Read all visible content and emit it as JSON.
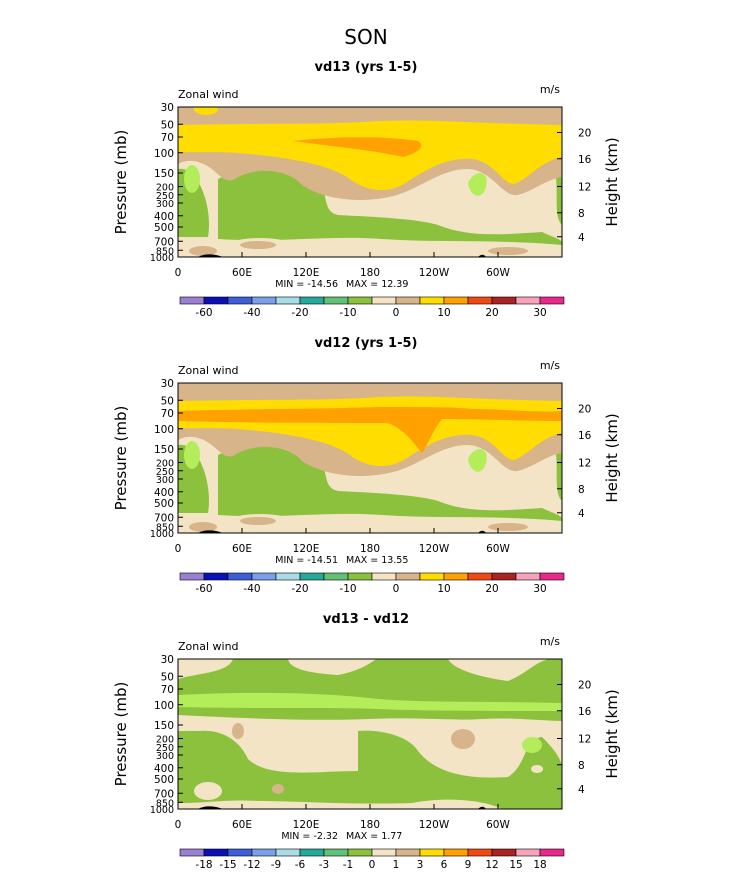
{
  "page_title": "SON",
  "colors": {
    "dark_tan": "#d7b48a",
    "light_tan": "#f2e4c4",
    "yellow": "#ffdd00",
    "orange": "#ffa100",
    "green": "#8cc13d",
    "light_green": "#b4ed5a",
    "land": "#000000"
  },
  "chart_data": [
    {
      "type": "contour",
      "title": "vd13 (yrs 1-5)",
      "left_label": "Zonal wind",
      "units": "m/s",
      "ylabel": "Pressure (mb)",
      "y2label": "Height (km)",
      "xticks": [
        "0",
        "60E",
        "120E",
        "180",
        "120W",
        "60W"
      ],
      "yticks": [
        "30",
        "50",
        "70",
        "100",
        "150",
        "200",
        "250",
        "300",
        "400",
        "500",
        "700",
        "850",
        "1000"
      ],
      "y2ticks": [
        "20",
        "16",
        "12",
        "8",
        "4"
      ],
      "min_text": "MIN = -14.56",
      "max_text": "MAX = 12.39",
      "min": -14.56,
      "max": 12.39,
      "colorbar": {
        "colors": [
          "#9b7fd1",
          "#0a0fb6",
          "#3d5fd6",
          "#7a9ee8",
          "#a9dce4",
          "#27a99a",
          "#60c177",
          "#8cc13d",
          "#f2e4c4",
          "#d7b48a",
          "#ffdd00",
          "#ffa100",
          "#ef4a14",
          "#aa2222",
          "#f4a3bb",
          "#e8288c"
        ],
        "labels": [
          "-60",
          "-40",
          "-20",
          "-10",
          "0",
          "10",
          "20",
          "30"
        ],
        "label_after_box": [
          1,
          3,
          5,
          7,
          9,
          11,
          13,
          15
        ]
      }
    },
    {
      "type": "contour",
      "title": "vd12 (yrs 1-5)",
      "left_label": "Zonal wind",
      "units": "m/s",
      "ylabel": "Pressure (mb)",
      "y2label": "Height (km)",
      "xticks": [
        "0",
        "60E",
        "120E",
        "180",
        "120W",
        "60W"
      ],
      "yticks": [
        "30",
        "50",
        "70",
        "100",
        "150",
        "200",
        "250",
        "300",
        "400",
        "500",
        "700",
        "850",
        "1000"
      ],
      "y2ticks": [
        "20",
        "16",
        "12",
        "8",
        "4"
      ],
      "min_text": "MIN = -14.51",
      "max_text": "MAX = 13.55",
      "min": -14.51,
      "max": 13.55,
      "colorbar": {
        "colors": [
          "#9b7fd1",
          "#0a0fb6",
          "#3d5fd6",
          "#7a9ee8",
          "#a9dce4",
          "#27a99a",
          "#60c177",
          "#8cc13d",
          "#f2e4c4",
          "#d7b48a",
          "#ffdd00",
          "#ffa100",
          "#ef4a14",
          "#aa2222",
          "#f4a3bb",
          "#e8288c"
        ],
        "labels": [
          "-60",
          "-40",
          "-20",
          "-10",
          "0",
          "10",
          "20",
          "30"
        ],
        "label_after_box": [
          1,
          3,
          5,
          7,
          9,
          11,
          13,
          15
        ]
      }
    },
    {
      "type": "contour",
      "title": "vd13 - vd12",
      "left_label": "Zonal wind",
      "units": "m/s",
      "ylabel": "Pressure (mb)",
      "y2label": "Height (km)",
      "xticks": [
        "0",
        "60E",
        "120E",
        "180",
        "120W",
        "60W"
      ],
      "yticks": [
        "30",
        "50",
        "70",
        "100",
        "150",
        "200",
        "250",
        "300",
        "400",
        "500",
        "700",
        "850",
        "1000"
      ],
      "y2ticks": [
        "20",
        "16",
        "12",
        "8",
        "4"
      ],
      "min_text": "MIN = -2.32",
      "max_text": "MAX = 1.77",
      "min": -2.32,
      "max": 1.77,
      "colorbar": {
        "colors": [
          "#9b7fd1",
          "#0a0fb6",
          "#3d5fd6",
          "#7a9ee8",
          "#a9dce4",
          "#27a99a",
          "#60c177",
          "#8cc13d",
          "#f2e4c4",
          "#d7b48a",
          "#ffdd00",
          "#ffa100",
          "#ef4a14",
          "#aa2222",
          "#f4a3bb",
          "#e8288c"
        ],
        "labels": [
          "-18",
          "-15",
          "-12",
          "-9",
          "-6",
          "-3",
          "-1",
          "0",
          "1",
          "3",
          "6",
          "9",
          "12",
          "15",
          "18"
        ],
        "label_after_box": [
          1,
          2,
          3,
          4,
          5,
          6,
          7,
          8,
          9,
          10,
          11,
          12,
          13,
          14,
          15
        ]
      }
    }
  ]
}
